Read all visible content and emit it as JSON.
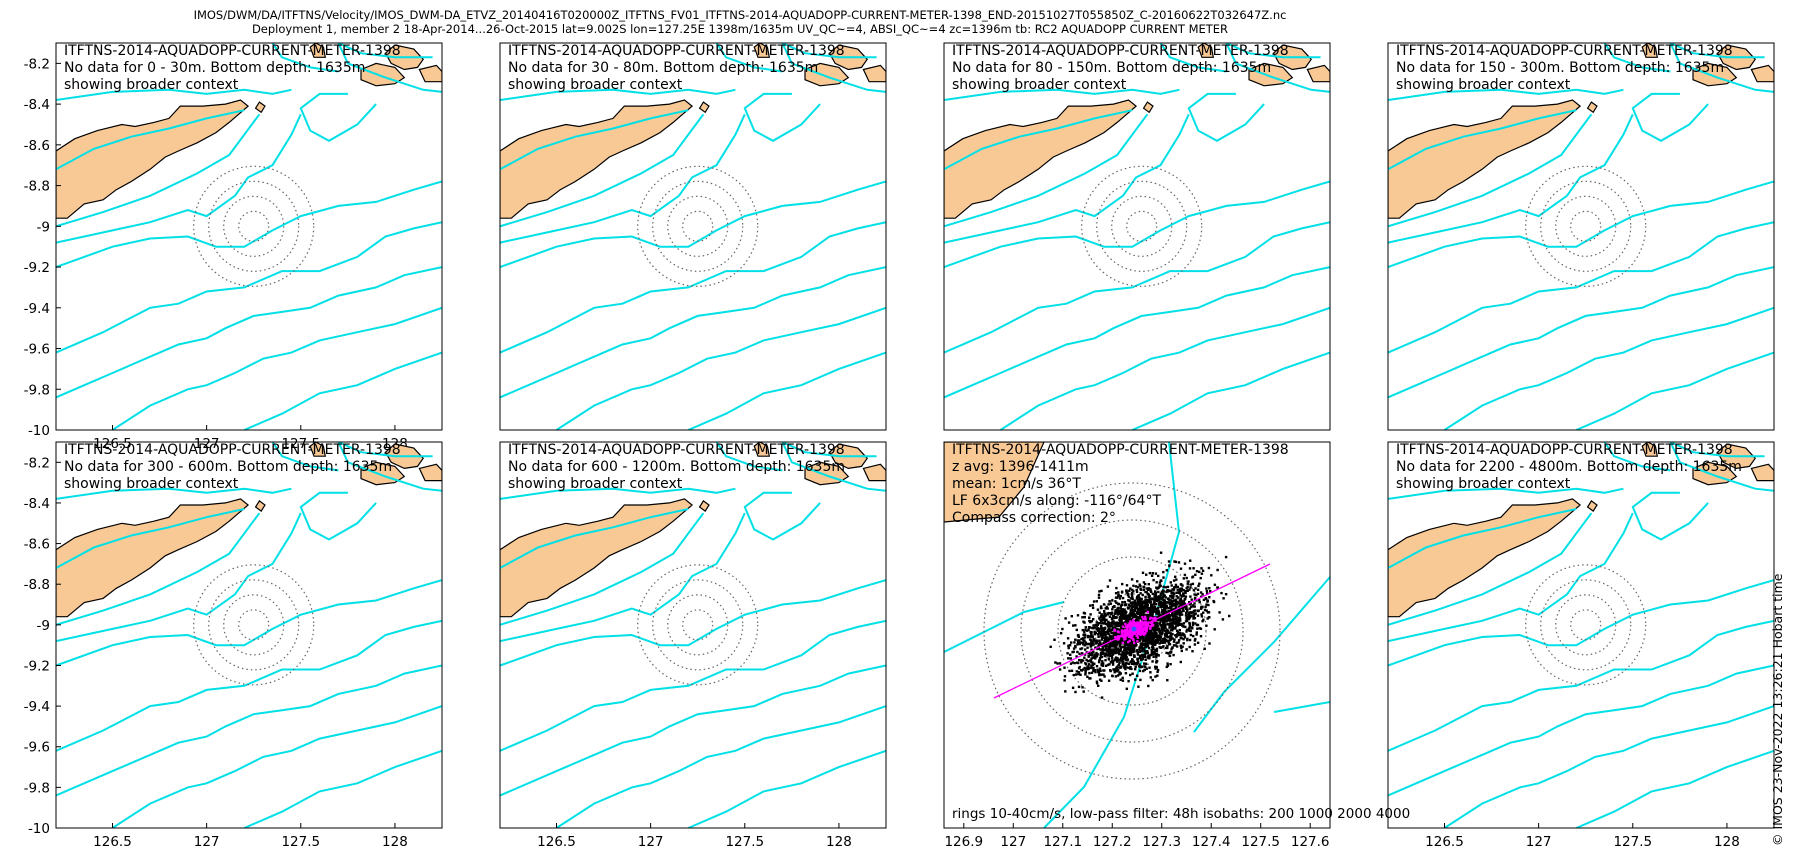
{
  "header": {
    "line1": "IMOS/DWM/DA/ITFTNS/Velocity/IMOS_DWM-DA_ETVZ_20140416T020000Z_ITFTNS_FV01_ITFTNS-2014-AQUADOPP-CURRENT-METER-1398_END-20151027T055850Z_C-20160622T032647Z.nc",
    "line2": "Deployment 1, member 2 18-Apr-2014...26-Oct-2015 lat=9.002S lon=127.25E 1398m/1635m UV_QC~=4, ABSI_QC~=4 zc=1396m tb: RC2 AQUADOPP CURRENT METER"
  },
  "side_stamp": "© IMOS 23-Nov-2022 13:26:21 Hobart time",
  "colors": {
    "land": "#f8c995",
    "coast": "#000000",
    "isobath": "#00e0e6",
    "scatter": "#000000",
    "lowpass": "#ff00ff",
    "ring": "#666666"
  },
  "chart_data": [
    {
      "type": "map",
      "title": "ITFTNS-2014-AQUADOPP-CURRENT-METER-1398",
      "lines": [
        "No data for 0 - 30m. Bottom depth: 1635m",
        "showing broader context"
      ],
      "xlim": [
        126.2,
        128.25
      ],
      "ylim": [
        -10,
        -8.1
      ],
      "xticks": [
        "126.5",
        "127",
        "127.5",
        "128"
      ],
      "yticks": [
        "-8.2",
        "-8.4",
        "-8.6",
        "-8.8",
        "-9",
        "-9.2",
        "-9.4",
        "-9.6",
        "-9.8",
        "-10"
      ]
    },
    {
      "type": "map",
      "title": "ITFTNS-2014-AQUADOPP-CURRENT-METER-1398",
      "lines": [
        "No data for 30 - 80m. Bottom depth: 1635m",
        "showing broader context"
      ],
      "xlim": [
        126.2,
        128.25
      ],
      "ylim": [
        -10,
        -8.1
      ]
    },
    {
      "type": "map",
      "title": "ITFTNS-2014-AQUADOPP-CURRENT-METER-1398",
      "lines": [
        "No data for 80 - 150m. Bottom depth: 1635m",
        "showing broader context"
      ],
      "xlim": [
        126.2,
        128.25
      ],
      "ylim": [
        -10,
        -8.1
      ]
    },
    {
      "type": "map",
      "title": "ITFTNS-2014-AQUADOPP-CURRENT-METER-1398",
      "lines": [
        "No data for 150 - 300m. Bottom depth: 1635m",
        "showing broader context"
      ],
      "xlim": [
        126.2,
        128.25
      ],
      "ylim": [
        -10,
        -8.1
      ]
    },
    {
      "type": "map",
      "title": "ITFTNS-2014-AQUADOPP-CURRENT-METER-1398",
      "lines": [
        "No data for 300 - 600m. Bottom depth: 1635m",
        "showing broader context"
      ],
      "xlim": [
        126.2,
        128.25
      ],
      "ylim": [
        -10,
        -8.1
      ],
      "xticks": [
        "126.5",
        "127",
        "127.5",
        "128"
      ],
      "yticks": [
        "-8.2",
        "-8.4",
        "-8.6",
        "-8.8",
        "-9",
        "-9.2",
        "-9.4",
        "-9.6",
        "-9.8",
        "-10"
      ]
    },
    {
      "type": "map",
      "title": "ITFTNS-2014-AQUADOPP-CURRENT-METER-1398",
      "lines": [
        "No data for 600 - 1200m. Bottom depth: 1635m",
        "showing broader context"
      ],
      "xlim": [
        126.2,
        128.25
      ],
      "ylim": [
        -10,
        -8.1
      ],
      "xticks": [
        "126.5",
        "127",
        "127.5",
        "128"
      ]
    },
    {
      "type": "scatter",
      "title": "ITFTNS-2014-AQUADOPP-CURRENT-METER-1398",
      "lines": [
        "z avg: 1396-1411m",
        "mean: 1cm/s 36°T",
        "LF 6x3cm/s along: -116°/64°T",
        "Compass correction: 2°"
      ],
      "footer": "rings 10-40cm/s, low-pass filter: 48h isobaths: 200 1000 2000 4000",
      "xlim": [
        126.86,
        127.64
      ],
      "ylim": [
        -10,
        -8.1
      ],
      "xticks": [
        "126.9",
        "127",
        "127.1",
        "127.2",
        "127.3",
        "127.4",
        "127.5",
        "127.6"
      ],
      "rings_cm_s": [
        10,
        20,
        30,
        40
      ],
      "lowpass_axis_deg_true": 64
    },
    {
      "type": "map",
      "title": "ITFTNS-2014-AQUADOPP-CURRENT-METER-1398",
      "lines": [
        "No data for 2200 - 4800m. Bottom depth: 1635m",
        "showing broader context"
      ],
      "xlim": [
        126.2,
        128.25
      ],
      "ylim": [
        -10,
        -8.1
      ],
      "xticks": [
        "126.5",
        "127",
        "127.5",
        "128"
      ]
    }
  ]
}
